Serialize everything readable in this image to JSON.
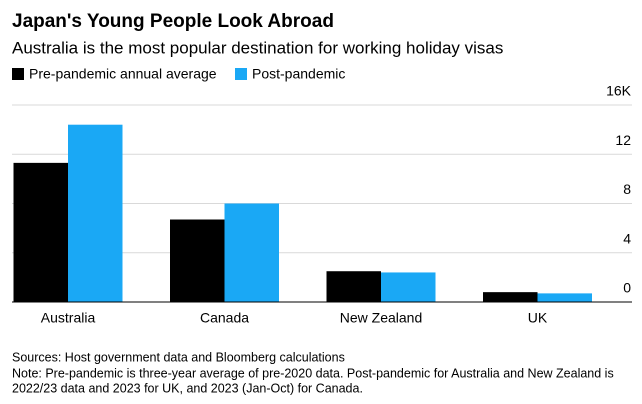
{
  "chart_data": {
    "type": "bar",
    "title": "Japan's Young People Look Abroad",
    "subtitle": "Australia is the most popular destination for working holiday visas",
    "categories": [
      "Australia",
      "Canada",
      "New Zealand",
      "UK"
    ],
    "series": [
      {
        "name": "Pre-pandemic annual average",
        "color": "#000000",
        "values": [
          11.3,
          6.7,
          2.5,
          0.8
        ]
      },
      {
        "name": "Post-pandemic",
        "color": "#1aa8f5",
        "values": [
          14.4,
          8.0,
          2.4,
          0.7
        ]
      }
    ],
    "ylim": [
      0,
      16
    ],
    "yticks": [
      0,
      4,
      8,
      12,
      {
        "value": 16,
        "label": "16K"
      }
    ],
    "grid": true,
    "sources": "Sources: Host government data and Bloomberg calculations",
    "note": [
      "Note: Pre-pandemic is three-year average of pre-2020 data. Post-pandemic for Australia and New Zealand is",
      "2022/23 data and 2023 for UK, and 2023 (Jan-Oct) for Canada."
    ]
  }
}
